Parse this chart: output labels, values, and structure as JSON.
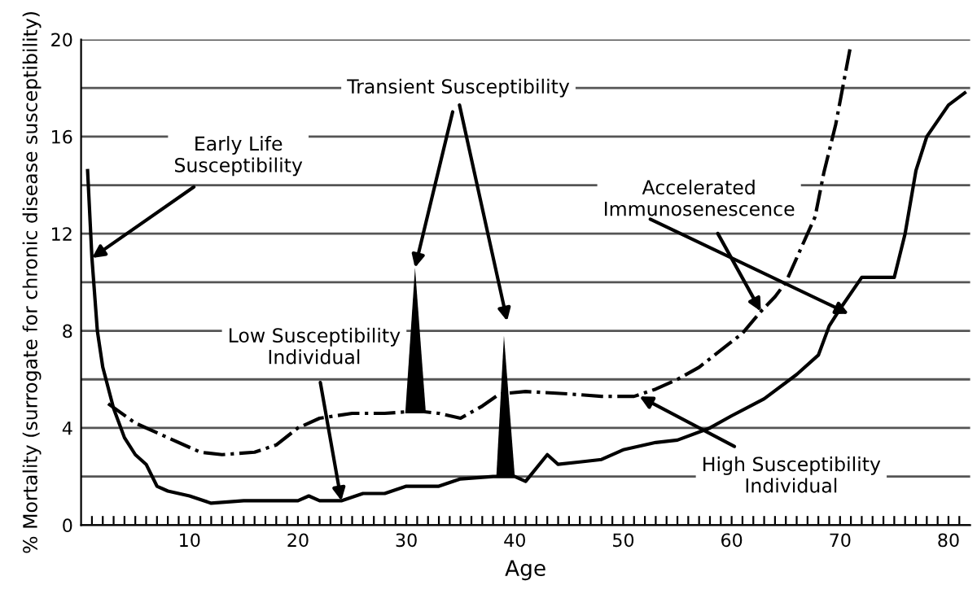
{
  "chart_data": {
    "type": "line",
    "xlabel": "Age",
    "ylabel": "% Mortality (surrogate for chronic disease susceptibility)",
    "xlim": [
      0,
      82
    ],
    "ylim": [
      0,
      20
    ],
    "xticks": [
      {
        "value": 1,
        "label": null
      },
      {
        "value": 2,
        "label": null
      },
      {
        "value": 3,
        "label": null
      },
      {
        "value": 4,
        "label": null
      },
      {
        "value": 5,
        "label": null
      },
      {
        "value": 6,
        "label": null
      },
      {
        "value": 7,
        "label": null
      },
      {
        "value": 8,
        "label": null
      },
      {
        "value": 9,
        "label": null
      },
      10,
      {
        "value": 11,
        "label": null
      },
      {
        "value": 12,
        "label": null
      },
      {
        "value": 13,
        "label": null
      },
      {
        "value": 14,
        "label": null
      },
      {
        "value": 15,
        "label": null
      },
      {
        "value": 16,
        "label": null
      },
      {
        "value": 17,
        "label": null
      },
      {
        "value": 18,
        "label": null
      },
      {
        "value": 19,
        "label": null
      },
      20,
      {
        "value": 21,
        "label": null
      },
      {
        "value": 22,
        "label": null
      },
      {
        "value": 23,
        "label": null
      },
      {
        "value": 24,
        "label": null
      },
      {
        "value": 25,
        "label": null
      },
      {
        "value": 26,
        "label": null
      },
      {
        "value": 27,
        "label": null
      },
      {
        "value": 28,
        "label": null
      },
      {
        "value": 29,
        "label": null
      },
      30,
      {
        "value": 31,
        "label": null
      },
      {
        "value": 32,
        "label": null
      },
      {
        "value": 33,
        "label": null
      },
      {
        "value": 34,
        "label": null
      },
      {
        "value": 35,
        "label": null
      },
      {
        "value": 36,
        "label": null
      },
      {
        "value": 37,
        "label": null
      },
      {
        "value": 38,
        "label": null
      },
      {
        "value": 39,
        "label": null
      },
      40,
      {
        "value": 41,
        "label": null
      },
      {
        "value": 42,
        "label": null
      },
      {
        "value": 43,
        "label": null
      },
      {
        "value": 44,
        "label": null
      },
      {
        "value": 45,
        "label": null
      },
      {
        "value": 46,
        "label": null
      },
      {
        "value": 47,
        "label": null
      },
      {
        "value": 48,
        "label": null
      },
      {
        "value": 49,
        "label": null
      },
      50,
      {
        "value": 51,
        "label": null
      },
      {
        "value": 52,
        "label": null
      },
      {
        "value": 53,
        "label": null
      },
      {
        "value": 54,
        "label": null
      },
      {
        "value": 55,
        "label": null
      },
      {
        "value": 56,
        "label": null
      },
      {
        "value": 57,
        "label": null
      },
      {
        "value": 58,
        "label": null
      },
      {
        "value": 59,
        "label": null
      },
      60,
      {
        "value": 61,
        "label": null
      },
      {
        "value": 62,
        "label": null
      },
      {
        "value": 63,
        "label": null
      },
      {
        "value": 64,
        "label": null
      },
      {
        "value": 65,
        "label": null
      },
      {
        "value": 66,
        "label": null
      },
      {
        "value": 67,
        "label": null
      },
      {
        "value": 68,
        "label": null
      },
      {
        "value": 69,
        "label": null
      },
      70,
      {
        "value": 71,
        "label": null
      },
      {
        "value": 72,
        "label": null
      },
      {
        "value": 73,
        "label": null
      },
      {
        "value": 74,
        "label": null
      },
      {
        "value": 75,
        "label": null
      },
      {
        "value": 76,
        "label": null
      },
      {
        "value": 77,
        "label": null
      },
      {
        "value": 78,
        "label": null
      },
      {
        "value": 79,
        "label": null
      },
      80,
      {
        "value": 81,
        "label": null
      }
    ],
    "yticks": [
      0,
      {
        "value": 2,
        "label": null
      },
      4,
      {
        "value": 6,
        "label": null
      },
      8,
      {
        "value": 10,
        "label": null
      },
      12,
      {
        "value": 14,
        "label": null
      },
      16,
      {
        "value": 18,
        "label": null
      },
      20
    ],
    "grid": "y",
    "series": [
      {
        "color": "#000000",
        "line_style": "solid",
        "x": [
          0.6,
          1,
          1.5,
          2,
          3,
          4,
          5,
          6,
          7,
          8,
          10,
          12,
          15,
          20,
          21,
          22,
          24,
          26,
          28,
          30,
          33,
          35,
          38,
          40,
          41,
          43,
          44,
          46,
          48,
          50,
          53,
          55,
          58,
          60,
          63,
          66,
          68,
          69,
          70,
          72,
          73,
          75,
          76,
          77,
          78,
          80,
          81.5
        ],
        "values": [
          14.6,
          11,
          8,
          6.5,
          4.8,
          3.6,
          2.9,
          2.5,
          1.6,
          1.4,
          1.2,
          0.9,
          1.0,
          1.0,
          1.2,
          1.0,
          1.0,
          1.3,
          1.3,
          1.6,
          1.6,
          1.9,
          2.0,
          2.0,
          1.8,
          2.9,
          2.5,
          2.6,
          2.7,
          3.1,
          3.4,
          3.5,
          4.0,
          4.5,
          5.2,
          6.2,
          7.0,
          8.2,
          8.9,
          10.2,
          10.2,
          10.2,
          12.0,
          14.6,
          16.0,
          17.3,
          17.8
        ]
      },
      {
        "color": "#000000",
        "line_style": "dashdot",
        "x": [
          2.5,
          5,
          8,
          11,
          13,
          16,
          18,
          20,
          22,
          25,
          28,
          31,
          33,
          35,
          37,
          38.6,
          41,
          45,
          48,
          51,
          53,
          55,
          57,
          59,
          61,
          62.7,
          64,
          65,
          66,
          67.7,
          68.5,
          69.6,
          71
        ],
        "values": [
          5.0,
          4.2,
          3.6,
          3.0,
          2.9,
          3.0,
          3.3,
          4.0,
          4.4,
          4.6,
          4.6,
          4.7,
          4.6,
          4.4,
          4.9,
          5.4,
          5.5,
          5.4,
          5.3,
          5.3,
          5.6,
          6.0,
          6.5,
          7.2,
          7.9,
          8.8,
          9.4,
          10.0,
          11.0,
          12.7,
          14.5,
          16.5,
          19.8
        ]
      },
      {
        "type": "area",
        "color": "#000000",
        "x": [
          29.9,
          30.8,
          31.8
        ],
        "values": [
          4.6,
          10.6,
          4.6
        ]
      },
      {
        "type": "area",
        "color": "#000000",
        "x": [
          38.3,
          39.0,
          40.0
        ],
        "values": [
          2.0,
          7.8,
          2.0
        ]
      }
    ],
    "annotations": [
      {
        "text": "Early Life\nSusceptibility",
        "x": 1,
        "y": 11
      },
      {
        "text": "Transient Susceptibility",
        "x": 30.8,
        "y": 10.6
      },
      {
        "text": "Low Susceptibility\nIndividual",
        "x": 24,
        "y": 1.0
      },
      {
        "text": "Accelerated\nImmunosenescence",
        "x": 62.7,
        "y": 8.8
      },
      {
        "text": "High Susceptibility\nIndividual",
        "x": 51.5,
        "y": 5.3
      }
    ]
  }
}
